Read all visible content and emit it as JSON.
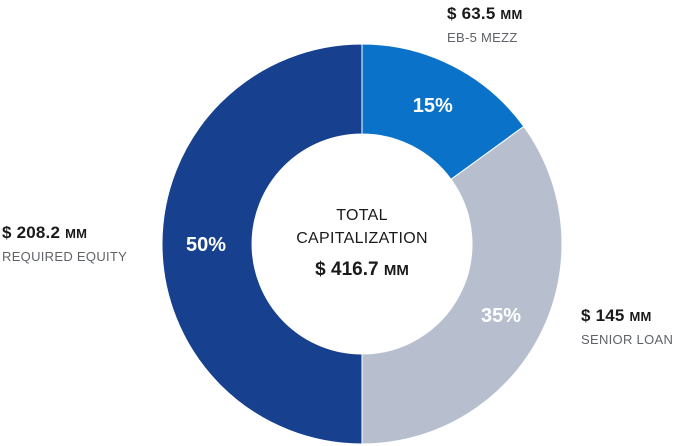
{
  "chart_data": {
    "type": "pie",
    "style": "donut",
    "title": "",
    "center_label": [
      "TOTAL",
      "CAPITALIZATION"
    ],
    "center_total": {
      "currency": "$",
      "value": "416.7",
      "unit": "MM"
    },
    "slices": [
      {
        "label": "EB-5 MEZZ",
        "amount": "63.5",
        "unit": "MM",
        "currency": "$",
        "percent": 15,
        "percent_label": "15%",
        "color": "#0a72c8"
      },
      {
        "label": "SENIOR LOAN",
        "amount": "145",
        "unit": "MM",
        "currency": "$",
        "percent": 35,
        "percent_label": "35%",
        "color": "#b7bfcf"
      },
      {
        "label": "REQUIRED EQUITY",
        "amount": "208.2",
        "unit": "MM",
        "currency": "$",
        "percent": 50,
        "percent_label": "50%",
        "color": "#17418e"
      }
    ],
    "legend": "none"
  }
}
